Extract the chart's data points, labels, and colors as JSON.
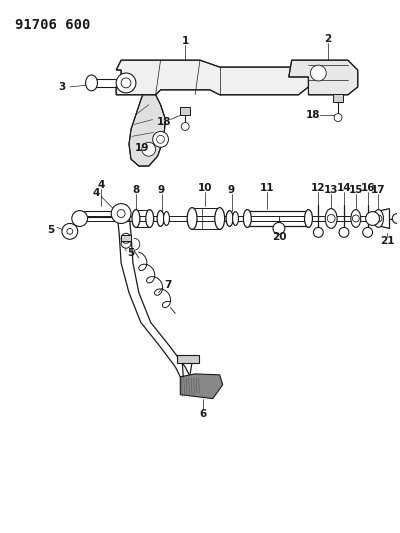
{
  "title_text": "91706 600",
  "bg_color": "#ffffff",
  "line_color": "#1a1a1a",
  "title_fontsize": 10,
  "label_fontsize": 7,
  "figsize": [
    4.0,
    5.33
  ],
  "dpi": 100
}
